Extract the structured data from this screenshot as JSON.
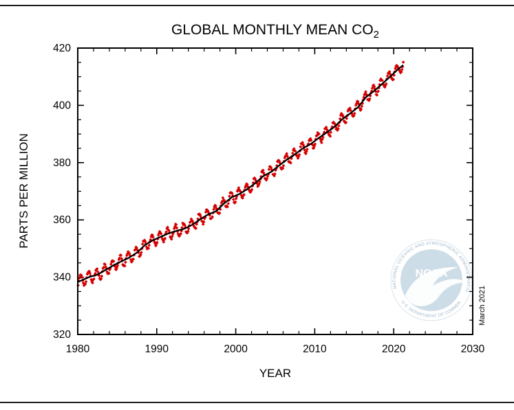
{
  "chart": {
    "title": "GLOBAL MONTHLY MEAN CO",
    "title_sub": "2",
    "xlabel": "YEAR",
    "ylabel": "PARTS PER MILLION",
    "annotation": "March 2021",
    "colors": {
      "marker": "#d40000",
      "trend": "#000000",
      "axis": "#000000",
      "rule": "#1a1a1a"
    }
  },
  "chart_data": {
    "type": "scatter",
    "title": "GLOBAL MONTHLY MEAN CO2",
    "xlabel": "YEAR",
    "ylabel": "PARTS PER MILLION",
    "xlim": [
      1980,
      2030
    ],
    "ylim": [
      320,
      420
    ],
    "x_ticks": [
      1980,
      1990,
      2000,
      2010,
      2020,
      2030
    ],
    "y_ticks": [
      320,
      340,
      360,
      380,
      400,
      420
    ],
    "x_minor_step": 2,
    "y_minor_step": 5,
    "grid": false,
    "legend": "none",
    "series_name": "Global monthly mean CO2 (red markers) with deseasonalized trend (black line)",
    "annual_trend": {
      "years": [
        1980,
        1981,
        1982,
        1983,
        1984,
        1985,
        1986,
        1987,
        1988,
        1989,
        1990,
        1991,
        1992,
        1993,
        1994,
        1995,
        1996,
        1997,
        1998,
        1999,
        2000,
        2001,
        2002,
        2003,
        2004,
        2005,
        2006,
        2007,
        2008,
        2009,
        2010,
        2011,
        2012,
        2013,
        2014,
        2015,
        2016,
        2017,
        2018,
        2019,
        2020,
        2021
      ],
      "ppm": [
        338.9,
        340.1,
        340.9,
        342.5,
        344.1,
        345.5,
        346.8,
        348.6,
        351.2,
        352.9,
        354.1,
        355.3,
        356.2,
        356.9,
        358.3,
        360.2,
        361.9,
        363.0,
        365.7,
        367.9,
        369.1,
        370.8,
        372.9,
        375.3,
        376.8,
        379.0,
        381.1,
        382.9,
        385.0,
        386.5,
        388.6,
        390.5,
        392.5,
        395.2,
        397.2,
        399.4,
        402.9,
        405.0,
        407.4,
        409.9,
        412.5,
        414.7
      ]
    },
    "seasonal_amplitude_ppm": 2.0,
    "months_in_last_year": 3,
    "data_start": "1980-01",
    "data_end": "2021-03"
  },
  "logo": {
    "name": "NOAA",
    "ring_text_top": "NATIONAL OCEANIC AND ATMOSPHERIC ADMINISTRATION",
    "ring_text_bottom": "U.S. DEPARTMENT OF COMMERCE",
    "wordmark": "NOAA"
  }
}
